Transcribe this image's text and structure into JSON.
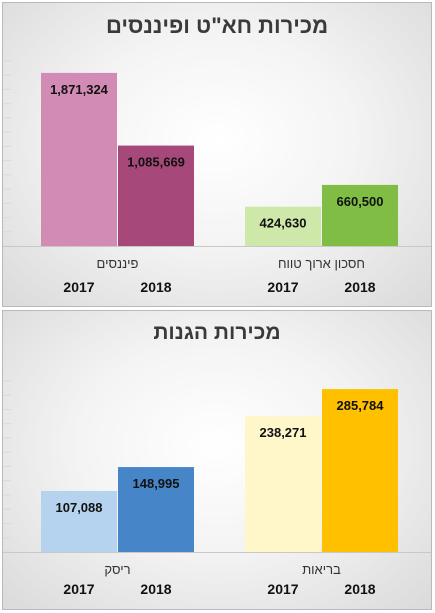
{
  "chart_data": [
    {
      "type": "bar",
      "title": "מכירות חא\"ט ופיננסים",
      "categories": [
        "פיננסים",
        "חסכון ארוך טווח"
      ],
      "series": [
        {
          "name": "2017",
          "values": [
            1871324,
            424630
          ],
          "colors": [
            "#d28bb4",
            "#cde8a9"
          ]
        },
        {
          "name": "2018",
          "values": [
            1085669,
            660500
          ],
          "colors": [
            "#a6487a",
            "#80bd45"
          ]
        }
      ],
      "data_labels": [
        [
          "1,871,324",
          "424,630"
        ],
        [
          "1,085,669",
          "660,500"
        ]
      ],
      "ylim": [
        0,
        2000000
      ],
      "grid": false
    },
    {
      "type": "bar",
      "title": "מכירות הגנות",
      "categories": [
        "ריסק",
        "בריאות"
      ],
      "series": [
        {
          "name": "2017",
          "values": [
            107088,
            238271
          ],
          "colors": [
            "#b5d2ee",
            "#fff6c9"
          ]
        },
        {
          "name": "2018",
          "values": [
            148995,
            285784
          ],
          "colors": [
            "#4686c8",
            "#ffc000"
          ]
        }
      ],
      "data_labels": [
        [
          "107,088",
          "238,271"
        ],
        [
          "148,995",
          "285,784"
        ]
      ],
      "ylim": [
        0,
        300000
      ],
      "grid": false
    }
  ]
}
